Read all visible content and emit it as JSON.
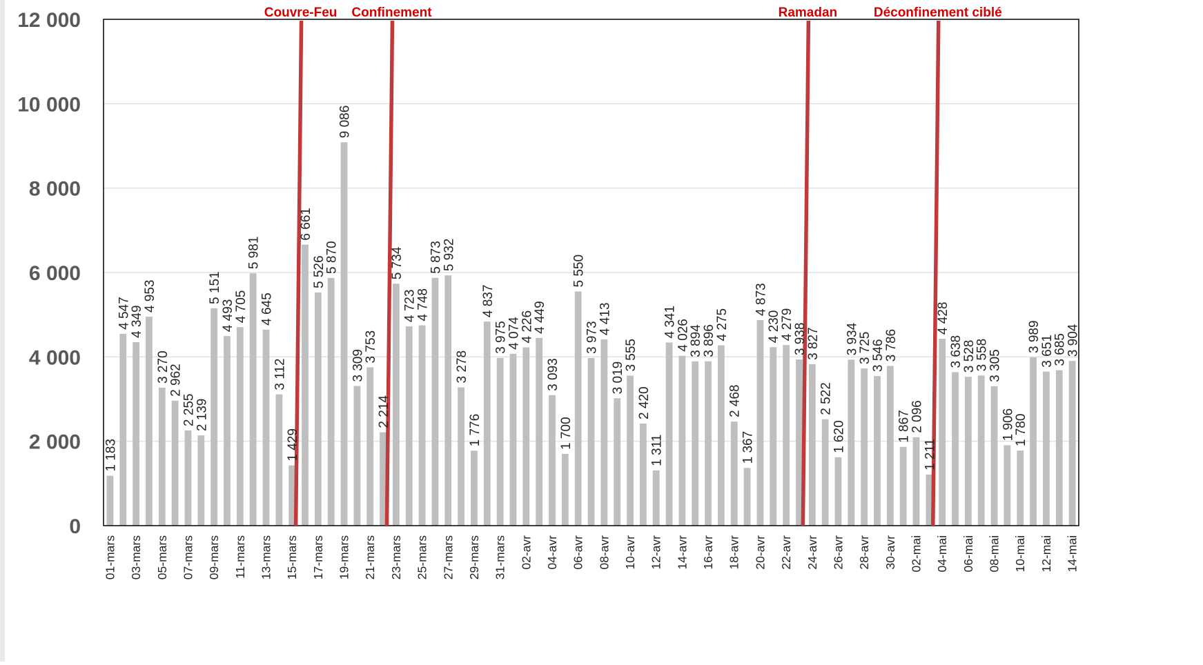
{
  "chart_data": {
    "type": "bar",
    "title": "",
    "xlabel": "",
    "ylabel": "",
    "ylim": [
      0,
      12000
    ],
    "yticks": [
      0,
      2000,
      4000,
      6000,
      8000,
      10000,
      12000
    ],
    "ytick_labels": [
      "0",
      "2 000",
      "4 000",
      "6 000",
      "8 000",
      "10 000",
      "12 000"
    ],
    "grid": "horizontal",
    "bar_color": "#bfbfbf",
    "event_color": "#c0393b",
    "event_label_color": "#d40000",
    "categories": [
      "01-mars",
      "02-mars",
      "03-mars",
      "04-mars",
      "05-mars",
      "06-mars",
      "07-mars",
      "08-mars",
      "09-mars",
      "10-mars",
      "11-mars",
      "12-mars",
      "13-mars",
      "14-mars",
      "15-mars",
      "16-mars",
      "17-mars",
      "18-mars",
      "19-mars",
      "20-mars",
      "21-mars",
      "22-mars",
      "23-mars",
      "24-mars",
      "25-mars",
      "26-mars",
      "27-mars",
      "28-mars",
      "29-mars",
      "30-mars",
      "31-mars",
      "01-avr",
      "02-avr",
      "03-avr",
      "04-avr",
      "05-avr",
      "06-avr",
      "07-avr",
      "08-avr",
      "09-avr",
      "10-avr",
      "11-avr",
      "12-avr",
      "13-avr",
      "14-avr",
      "15-avr",
      "16-avr",
      "17-avr",
      "18-avr",
      "19-avr",
      "20-avr",
      "21-avr",
      "22-avr",
      "23-avr",
      "24-avr",
      "25-avr",
      "26-avr",
      "27-avr",
      "28-avr",
      "29-avr",
      "30-avr",
      "01-mai",
      "02-mai",
      "03-mai",
      "04-mai",
      "05-mai",
      "06-mai",
      "07-mai",
      "08-mai",
      "09-mai",
      "10-mai",
      "11-mai",
      "12-mai",
      "13-mai",
      "14-mai"
    ],
    "values": [
      1183,
      4547,
      4349,
      4953,
      3270,
      2962,
      2255,
      2139,
      5151,
      4493,
      4705,
      5981,
      4645,
      3112,
      1429,
      6661,
      5526,
      5870,
      9086,
      3309,
      3753,
      2214,
      5734,
      4723,
      4748,
      5873,
      5932,
      3278,
      1776,
      4837,
      3975,
      4074,
      4226,
      4449,
      3093,
      1700,
      5550,
      3973,
      4413,
      3019,
      3555,
      2420,
      1311,
      4341,
      4026,
      3894,
      3896,
      4275,
      2468,
      1367,
      4873,
      4230,
      4279,
      3938,
      3827,
      2522,
      1620,
      3934,
      3725,
      3546,
      3786,
      1867,
      2096,
      1211,
      4428,
      3638,
      3528,
      3558,
      3305,
      1906,
      1780,
      3989,
      3651,
      3685,
      3904
    ],
    "data_labels": [
      "1 183",
      "4 547",
      "4 349",
      "4 953",
      "3 270",
      "2 962",
      "2 255",
      "2 139",
      "5 151",
      "4 493",
      "4 705",
      "5 981",
      "4 645",
      "3 112",
      "1 429",
      "6 661",
      "5 526",
      "5 870",
      "9 086",
      "3 309",
      "3 753",
      "2 214",
      "5 734",
      "4 723",
      "4 748",
      "5 873",
      "5 932",
      "3 278",
      "1 776",
      "4 837",
      "3 975",
      "4 074",
      "4 226",
      "4 449",
      "3 093",
      "1 700",
      "5 550",
      "3 973",
      "4 413",
      "3 019",
      "3 555",
      "2 420",
      "1 311",
      "4 341",
      "4 026",
      "3 894",
      "3 896",
      "4 275",
      "2 468",
      "1 367",
      "4 873",
      "4 230",
      "4 279",
      "3 938",
      "3 827",
      "2 522",
      "1 620",
      "3 934",
      "3 725",
      "3 546",
      "3 786",
      "1 867",
      "2 096",
      "1 211",
      "4 428",
      "3 638",
      "3 528",
      "3 558",
      "3 305",
      "1 906",
      "1 780",
      "3 989",
      "3 651",
      "3 685",
      "3 904"
    ],
    "events": [
      {
        "label": "Couvre-Feu",
        "between": [
          "15-mars",
          "16-mars"
        ]
      },
      {
        "label": "Confinement",
        "between": [
          "22-mars",
          "23-mars"
        ]
      },
      {
        "label": "Ramadan",
        "between": [
          "23-avr",
          "24-avr"
        ]
      },
      {
        "label": "Déconfinement ciblé",
        "between": [
          "03-mai",
          "04-mai"
        ]
      }
    ]
  }
}
